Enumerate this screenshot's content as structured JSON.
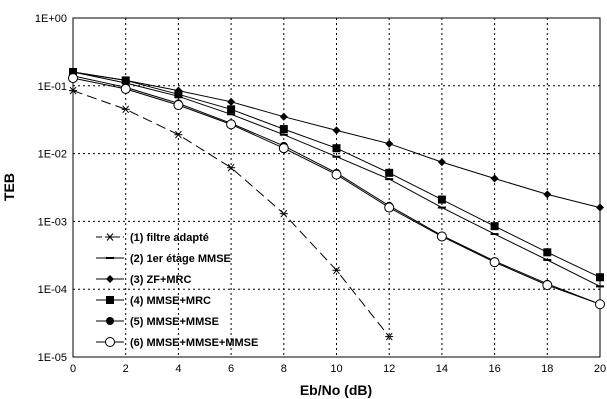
{
  "chart_data": {
    "type": "line",
    "title": "",
    "xlabel": "Eb/No (dB)",
    "ylabel": "TEB",
    "xlim": [
      0,
      20
    ],
    "ylim": [
      1e-05,
      1
    ],
    "yscale": "log",
    "grid": true,
    "legend_position": "bottom-left",
    "x_ticks": [
      "0",
      "2",
      "4",
      "6",
      "8",
      "10",
      "12",
      "14",
      "16",
      "18",
      "20"
    ],
    "y_ticks": [
      "1E+00",
      "1E-01",
      "1E-02",
      "1E-03",
      "1E-04",
      "1E-05"
    ],
    "series": [
      {
        "name": "(1) filtre adapté",
        "marker": "asterisk",
        "line": "dashed",
        "x": [
          0,
          2,
          4,
          6,
          8,
          10,
          12
        ],
        "y": [
          0.085,
          0.045,
          0.019,
          0.0062,
          0.0013,
          0.00019,
          2e-05
        ]
      },
      {
        "name": "(2) 1er étage MMSE",
        "marker": "dash",
        "line": "solid",
        "x": [
          0,
          2,
          4,
          6,
          8,
          10,
          12,
          14,
          16,
          18,
          20
        ],
        "y": [
          0.16,
          0.11,
          0.07,
          0.038,
          0.019,
          0.009,
          0.0042,
          0.0016,
          0.00065,
          0.00027,
          0.00011
        ]
      },
      {
        "name": "(3) ZF+MRC",
        "marker": "diamond",
        "line": "solid",
        "x": [
          0,
          2,
          4,
          6,
          8,
          10,
          12,
          14,
          16,
          18,
          20
        ],
        "y": [
          0.16,
          0.12,
          0.085,
          0.058,
          0.035,
          0.022,
          0.014,
          0.0075,
          0.0043,
          0.0025,
          0.0016
        ]
      },
      {
        "name": "(4) MMSE+MRC",
        "marker": "square",
        "line": "solid",
        "x": [
          0,
          2,
          4,
          6,
          8,
          10,
          12,
          14,
          16,
          18,
          20
        ],
        "y": [
          0.16,
          0.12,
          0.075,
          0.045,
          0.023,
          0.012,
          0.0052,
          0.0021,
          0.00085,
          0.00035,
          0.00015
        ]
      },
      {
        "name": "(5) MMSE+MMSE",
        "marker": "circle-filled",
        "line": "solid",
        "x": [
          0,
          2,
          4,
          6,
          8,
          10,
          12,
          14,
          16,
          18,
          20
        ],
        "y": [
          0.14,
          0.095,
          0.055,
          0.028,
          0.013,
          0.0052,
          0.0017,
          0.00062,
          0.00026,
          0.00012,
          6e-05
        ]
      },
      {
        "name": "(6) MMSE+MMSE+MMSE",
        "marker": "circle-open",
        "line": "solid",
        "x": [
          0,
          2,
          4,
          6,
          8,
          10,
          12,
          14,
          16,
          18,
          20
        ],
        "y": [
          0.13,
          0.09,
          0.052,
          0.027,
          0.012,
          0.0049,
          0.0016,
          0.0006,
          0.00025,
          0.000115,
          6e-05
        ]
      }
    ]
  }
}
